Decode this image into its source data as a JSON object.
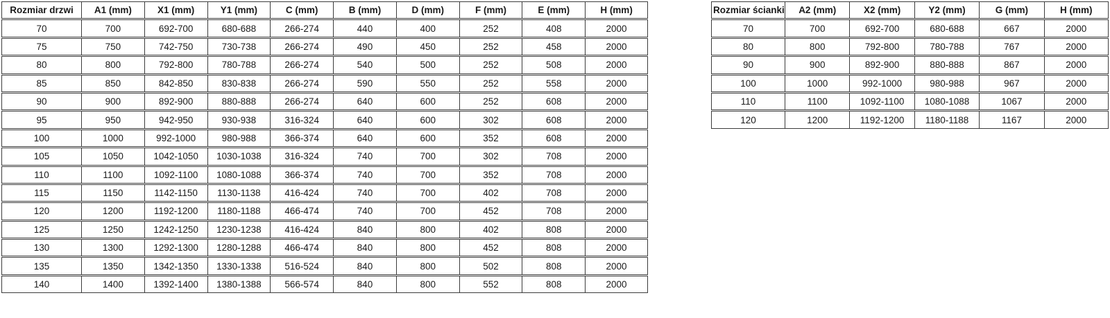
{
  "page": {
    "background": "#ffffff",
    "text_color": "#1a1a1a",
    "border_color": "#3c3c3c"
  },
  "left_table": {
    "title": "door sizes specification",
    "headers": [
      "Rozmiar drzwi",
      "A1 (mm)",
      "X1 (mm)",
      "Y1 (mm)",
      "C (mm)",
      "B (mm)",
      "D (mm)",
      "F (mm)",
      "E (mm)",
      "H (mm)"
    ],
    "rows": [
      [
        "70",
        "700",
        "692-700",
        "680-688",
        "266-274",
        "440",
        "400",
        "252",
        "408",
        "2000"
      ],
      [
        "75",
        "750",
        "742-750",
        "730-738",
        "266-274",
        "490",
        "450",
        "252",
        "458",
        "2000"
      ],
      [
        "80",
        "800",
        "792-800",
        "780-788",
        "266-274",
        "540",
        "500",
        "252",
        "508",
        "2000"
      ],
      [
        "85",
        "850",
        "842-850",
        "830-838",
        "266-274",
        "590",
        "550",
        "252",
        "558",
        "2000"
      ],
      [
        "90",
        "900",
        "892-900",
        "880-888",
        "266-274",
        "640",
        "600",
        "252",
        "608",
        "2000"
      ],
      [
        "95",
        "950",
        "942-950",
        "930-938",
        "316-324",
        "640",
        "600",
        "302",
        "608",
        "2000"
      ],
      [
        "100",
        "1000",
        "992-1000",
        "980-988",
        "366-374",
        "640",
        "600",
        "352",
        "608",
        "2000"
      ],
      [
        "105",
        "1050",
        "1042-1050",
        "1030-1038",
        "316-324",
        "740",
        "700",
        "302",
        "708",
        "2000"
      ],
      [
        "110",
        "1100",
        "1092-1100",
        "1080-1088",
        "366-374",
        "740",
        "700",
        "352",
        "708",
        "2000"
      ],
      [
        "115",
        "1150",
        "1142-1150",
        "1130-1138",
        "416-424",
        "740",
        "700",
        "402",
        "708",
        "2000"
      ],
      [
        "120",
        "1200",
        "1192-1200",
        "1180-1188",
        "466-474",
        "740",
        "700",
        "452",
        "708",
        "2000"
      ],
      [
        "125",
        "1250",
        "1242-1250",
        "1230-1238",
        "416-424",
        "840",
        "800",
        "402",
        "808",
        "2000"
      ],
      [
        "130",
        "1300",
        "1292-1300",
        "1280-1288",
        "466-474",
        "840",
        "800",
        "452",
        "808",
        "2000"
      ],
      [
        "135",
        "1350",
        "1342-1350",
        "1330-1338",
        "516-524",
        "840",
        "800",
        "502",
        "808",
        "2000"
      ],
      [
        "140",
        "1400",
        "1392-1400",
        "1380-1388",
        "566-574",
        "840",
        "800",
        "552",
        "808",
        "2000"
      ]
    ]
  },
  "right_table": {
    "title": "wall panel sizes specification",
    "headers": [
      "Rozmiar ścianki",
      "A2 (mm)",
      "X2 (mm)",
      "Y2 (mm)",
      "G (mm)",
      "H (mm)"
    ],
    "rows": [
      [
        "70",
        "700",
        "692-700",
        "680-688",
        "667",
        "2000"
      ],
      [
        "80",
        "800",
        "792-800",
        "780-788",
        "767",
        "2000"
      ],
      [
        "90",
        "900",
        "892-900",
        "880-888",
        "867",
        "2000"
      ],
      [
        "100",
        "1000",
        "992-1000",
        "980-988",
        "967",
        "2000"
      ],
      [
        "110",
        "1100",
        "1092-1100",
        "1080-1088",
        "1067",
        "2000"
      ],
      [
        "120",
        "1200",
        "1192-1200",
        "1180-1188",
        "1167",
        "2000"
      ]
    ]
  }
}
